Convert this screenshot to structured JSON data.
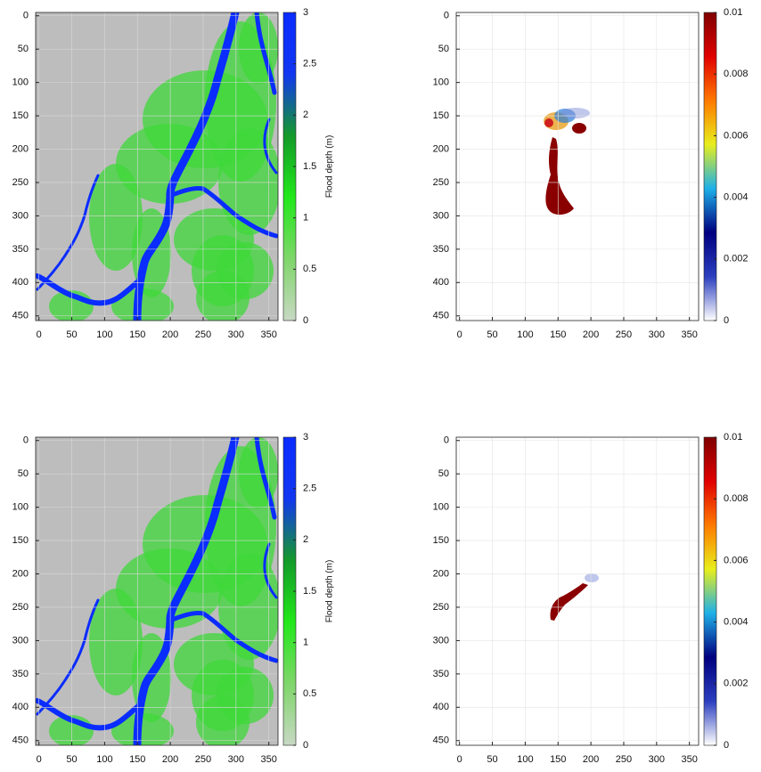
{
  "chart_data": [
    {
      "type": "heatmap",
      "xlim": [
        -5,
        364
      ],
      "ylim": [
        -5,
        457
      ],
      "y_inverted": true,
      "xticks": [
        0,
        50,
        100,
        150,
        200,
        250,
        300,
        350
      ],
      "yticks": [
        0,
        50,
        100,
        150,
        200,
        250,
        300,
        350,
        400,
        450
      ],
      "grid": true,
      "background": "#bdbdbd",
      "colorbar": {
        "label": "Flood depth (m)",
        "lim": [
          0,
          3
        ],
        "ticks": [
          0,
          0.5,
          1,
          1.5,
          2,
          2.5,
          3
        ],
        "colors": [
          "#c8d8c4",
          "#7fd66a",
          "#22e81a",
          "#149a2a",
          "#1237f0",
          "#0a2cff"
        ]
      }
    },
    {
      "type": "heatmap",
      "xlim": [
        -5,
        364
      ],
      "ylim": [
        -5,
        457
      ],
      "y_inverted": true,
      "xticks": [
        0,
        50,
        100,
        150,
        200,
        250,
        300,
        350
      ],
      "yticks": [
        0,
        50,
        100,
        150,
        200,
        250,
        300,
        350,
        400,
        450
      ],
      "grid": true,
      "background": "#ffffff",
      "colorbar": {
        "lim": [
          0,
          0.01
        ],
        "ticks": [
          0,
          0.002,
          0.004,
          0.006,
          0.008,
          0.01
        ],
        "colors": [
          "#ffffff",
          "#2b3fbf",
          "#00007f",
          "#1eb0e8",
          "#e8ee1c",
          "#ff7a00",
          "#e00000",
          "#7f0000"
        ]
      }
    },
    {
      "type": "heatmap",
      "xlim": [
        -5,
        364
      ],
      "ylim": [
        -5,
        457
      ],
      "y_inverted": true,
      "xticks": [
        0,
        50,
        100,
        150,
        200,
        250,
        300,
        350
      ],
      "yticks": [
        0,
        50,
        100,
        150,
        200,
        250,
        300,
        350,
        400,
        450
      ],
      "grid": true,
      "background": "#bdbdbd",
      "colorbar": {
        "label": "Flood depth (m)",
        "lim": [
          0,
          3
        ],
        "ticks": [
          0,
          0.5,
          1,
          1.5,
          2,
          2.5,
          3
        ],
        "colors": [
          "#c8d8c4",
          "#7fd66a",
          "#22e81a",
          "#149a2a",
          "#1237f0",
          "#0a2cff"
        ]
      }
    },
    {
      "type": "heatmap",
      "xlim": [
        -5,
        364
      ],
      "ylim": [
        -5,
        457
      ],
      "y_inverted": true,
      "xticks": [
        0,
        50,
        100,
        150,
        200,
        250,
        300,
        350
      ],
      "yticks": [
        0,
        50,
        100,
        150,
        200,
        250,
        300,
        350,
        400,
        450
      ],
      "grid": true,
      "background": "#ffffff",
      "colorbar": {
        "lim": [
          0,
          0.01
        ],
        "ticks": [
          0,
          0.002,
          0.004,
          0.006,
          0.008,
          0.01
        ],
        "colors": [
          "#ffffff",
          "#2b3fbf",
          "#00007f",
          "#1eb0e8",
          "#e8ee1c",
          "#ff7a00",
          "#e00000",
          "#7f0000"
        ]
      }
    }
  ]
}
